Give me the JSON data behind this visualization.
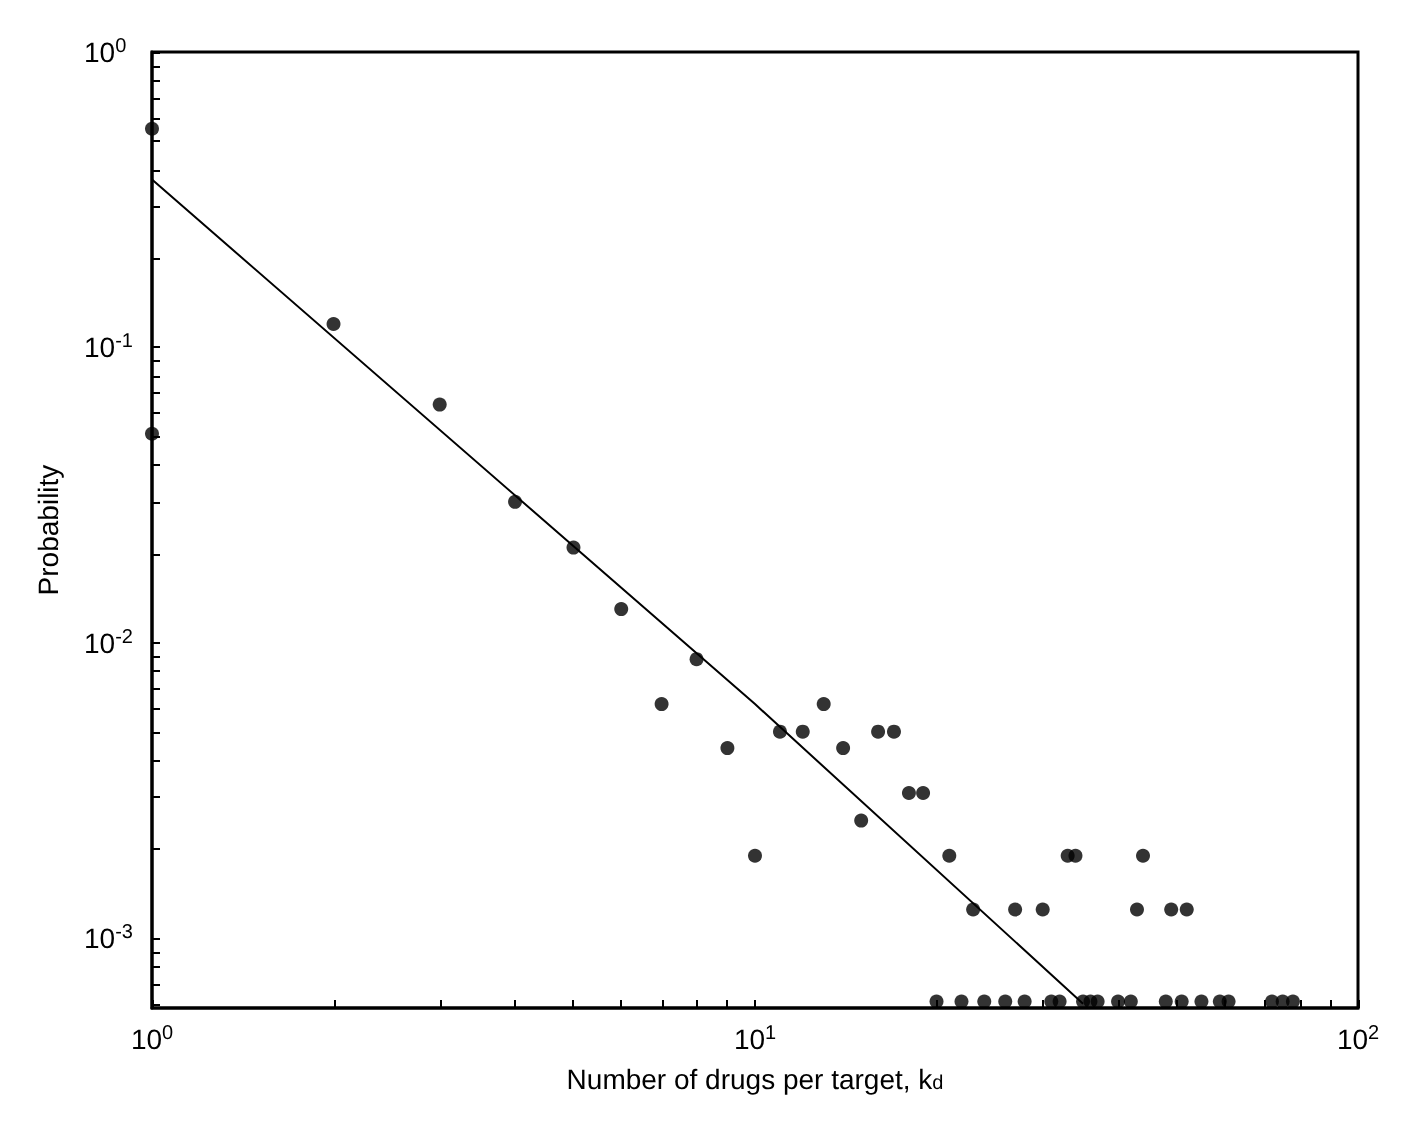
{
  "chart_data": {
    "type": "scatter",
    "xlabel": "Number of drugs per target, k$_{d}$",
    "ylabel": "Probability",
    "log": "xy",
    "grid": false,
    "marker": "circle",
    "xlim": [
      1,
      100
    ],
    "ylim": [
      0.00058,
      1
    ],
    "xticks": [
      {
        "value": 1,
        "label": "10$^{0}$"
      },
      {
        "value": 2,
        "label": null
      },
      {
        "value": 3,
        "label": null
      },
      {
        "value": 4,
        "label": null
      },
      {
        "value": 5,
        "label": null
      },
      {
        "value": 6,
        "label": null
      },
      {
        "value": 7,
        "label": null
      },
      {
        "value": 8,
        "label": null
      },
      {
        "value": 9,
        "label": null
      },
      {
        "value": 10,
        "label": "10$^{1}$"
      },
      {
        "value": 20,
        "label": null
      },
      {
        "value": 30,
        "label": null
      },
      {
        "value": 40,
        "label": null
      },
      {
        "value": 50,
        "label": null
      },
      {
        "value": 60,
        "label": null
      },
      {
        "value": 70,
        "label": null
      },
      {
        "value": 80,
        "label": null
      },
      {
        "value": 90,
        "label": null
      },
      {
        "value": 100,
        "label": "10$^{2}$"
      }
    ],
    "yticks": [
      {
        "value": 0.0006,
        "label": null
      },
      {
        "value": 0.0007,
        "label": null
      },
      {
        "value": 0.0008,
        "label": null
      },
      {
        "value": 0.0009,
        "label": null
      },
      {
        "value": 0.001,
        "label": "10$^{-3}$"
      },
      {
        "value": 0.002,
        "label": null
      },
      {
        "value": 0.003,
        "label": null
      },
      {
        "value": 0.004,
        "label": null
      },
      {
        "value": 0.005,
        "label": null
      },
      {
        "value": 0.006,
        "label": null
      },
      {
        "value": 0.007,
        "label": null
      },
      {
        "value": 0.008,
        "label": null
      },
      {
        "value": 0.009,
        "label": null
      },
      {
        "value": 0.01,
        "label": "10$^{-2}$"
      },
      {
        "value": 0.02,
        "label": null
      },
      {
        "value": 0.03,
        "label": null
      },
      {
        "value": 0.04,
        "label": null
      },
      {
        "value": 0.05,
        "label": null
      },
      {
        "value": 0.06,
        "label": null
      },
      {
        "value": 0.07,
        "label": null
      },
      {
        "value": 0.08,
        "label": null
      },
      {
        "value": 0.09,
        "label": null
      },
      {
        "value": 0.1,
        "label": "10$^{-1}$"
      },
      {
        "value": 0.2,
        "label": null
      },
      {
        "value": 0.3,
        "label": null
      },
      {
        "value": 0.4,
        "label": null
      },
      {
        "value": 0.5,
        "label": null
      },
      {
        "value": 0.6,
        "label": null
      },
      {
        "value": 0.7,
        "label": null
      },
      {
        "value": 0.8,
        "label": null
      },
      {
        "value": 0.9,
        "label": null
      },
      {
        "value": 1,
        "label": "10$^{0}$"
      }
    ],
    "series": [
      {
        "color": "#000000",
        "x": [
          1,
          1,
          2,
          3,
          4,
          5,
          6,
          7,
          8,
          9,
          10,
          11,
          12,
          13,
          14,
          15,
          16,
          17,
          18,
          19,
          21,
          23,
          27,
          30,
          33,
          34,
          43,
          44,
          49,
          52,
          20,
          22,
          24,
          26,
          28,
          31,
          32,
          35,
          36,
          37,
          40,
          42,
          48,
          51,
          55,
          59,
          61,
          72,
          75,
          78
        ],
        "values": [
          0.55,
          0.051,
          0.12,
          0.064,
          0.03,
          0.021,
          0.013,
          0.0062,
          0.0088,
          0.0044,
          0.0019,
          0.005,
          0.005,
          0.0062,
          0.0044,
          0.0025,
          0.005,
          0.005,
          0.0031,
          0.0031,
          0.0019,
          0.00125,
          0.00125,
          0.00125,
          0.0019,
          0.0019,
          0.00125,
          0.0019,
          0.00125,
          0.00125,
          0.00061,
          0.00061,
          0.00061,
          0.00061,
          0.00061,
          0.00061,
          0.00061,
          0.00061,
          0.00061,
          0.00061,
          0.00061,
          0.00061,
          0.00061,
          0.00061,
          0.00061,
          0.00061,
          0.00061,
          0.00061,
          0.00061,
          0.00061
        ]
      },
      {
        "type": "line",
        "color": "#000000",
        "marker": "none",
        "line_style": "solid",
        "x": [
          1,
          10,
          35
        ],
        "values": [
          0.37,
          0.0062,
          0.0006
        ]
      }
    ]
  }
}
